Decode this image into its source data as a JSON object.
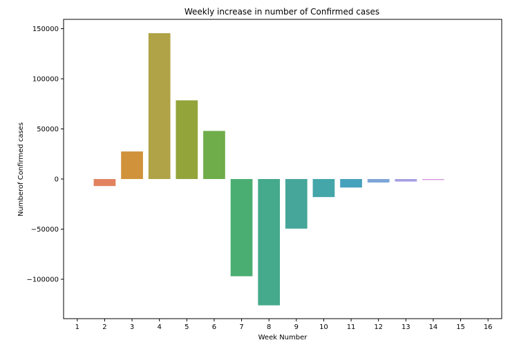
{
  "chart_data": {
    "type": "bar",
    "title": "Weekly increase in number of Confirmed cases",
    "xlabel": "Week Number",
    "ylabel": "Numberof Confirmed cases",
    "categories": [
      "1",
      "2",
      "3",
      "4",
      "5",
      "6",
      "7",
      "8",
      "9",
      "10",
      "11",
      "12",
      "13",
      "14",
      "15",
      "16"
    ],
    "values": [
      0,
      -7000,
      27500,
      145500,
      78500,
      48000,
      -97000,
      -126000,
      -49500,
      -18000,
      -8500,
      -3500,
      -2500,
      -1000,
      0,
      0
    ],
    "colors": [
      "#e8a2a2",
      "#e1825f",
      "#d0923a",
      "#b0a246",
      "#93a43b",
      "#6fac4a",
      "#4aae72",
      "#45a98b",
      "#46a69a",
      "#44a6a9",
      "#46a1bc",
      "#7ea5d8",
      "#a59fe1",
      "#d999e0",
      "#e394c0",
      "#e89da5"
    ],
    "ylim": [
      -140000,
      160000
    ],
    "yticks": [
      -100000,
      -50000,
      0,
      50000,
      100000,
      150000
    ],
    "ytick_labels": [
      "−100000",
      "−50000",
      "0",
      "50000",
      "100000",
      "150000"
    ],
    "grid": false,
    "legend": "none"
  }
}
